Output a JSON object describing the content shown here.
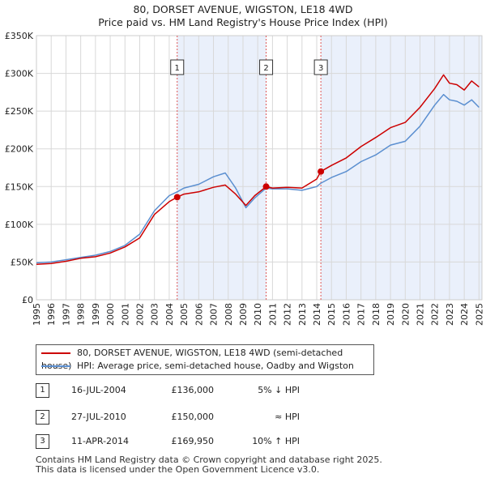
{
  "chart_data": {
    "type": "line",
    "title": "80, DORSET AVENUE, WIGSTON, LE18 4WD",
    "subtitle": "Price paid vs. HM Land Registry's House Price Index (HPI)",
    "xlim": [
      1995,
      2025.2
    ],
    "ylim": [
      0,
      350000
    ],
    "y_ticks": [
      {
        "value": 0,
        "label": "£0"
      },
      {
        "value": 50000,
        "label": "£50K"
      },
      {
        "value": 100000,
        "label": "£100K"
      },
      {
        "value": 150000,
        "label": "£150K"
      },
      {
        "value": 200000,
        "label": "£200K"
      },
      {
        "value": 250000,
        "label": "£250K"
      },
      {
        "value": 300000,
        "label": "£300K"
      },
      {
        "value": 350000,
        "label": "£350K"
      }
    ],
    "x_ticks": [
      "1995",
      "1996",
      "1997",
      "1998",
      "1999",
      "2000",
      "2001",
      "2002",
      "2003",
      "2004",
      "2005",
      "2006",
      "2007",
      "2008",
      "2009",
      "2010",
      "2011",
      "2012",
      "2013",
      "2014",
      "2015",
      "2016",
      "2017",
      "2018",
      "2019",
      "2020",
      "2021",
      "2022",
      "2023",
      "2024",
      "2025"
    ],
    "series": [
      {
        "name": "80, DORSET AVENUE, WIGSTON, LE18 4WD (semi-detached house)",
        "color": "#cc0000",
        "points": [
          [
            1995,
            47000
          ],
          [
            1996,
            48000
          ],
          [
            1997,
            51000
          ],
          [
            1998,
            55000
          ],
          [
            1999,
            57000
          ],
          [
            2000,
            62000
          ],
          [
            2001,
            70000
          ],
          [
            2002,
            82000
          ],
          [
            2003,
            113000
          ],
          [
            2004,
            130000
          ],
          [
            2004.54,
            136000
          ],
          [
            2005,
            140000
          ],
          [
            2006,
            143000
          ],
          [
            2007,
            149000
          ],
          [
            2007.8,
            152000
          ],
          [
            2008.5,
            140000
          ],
          [
            2009.2,
            125000
          ],
          [
            2009.8,
            138000
          ],
          [
            2010.57,
            150000
          ],
          [
            2011,
            148000
          ],
          [
            2012,
            149000
          ],
          [
            2013,
            148000
          ],
          [
            2014,
            160000
          ],
          [
            2014.28,
            169950
          ],
          [
            2015,
            178000
          ],
          [
            2016,
            188000
          ],
          [
            2017,
            203000
          ],
          [
            2018,
            215000
          ],
          [
            2019,
            228000
          ],
          [
            2020,
            235000
          ],
          [
            2021,
            255000
          ],
          [
            2022,
            280000
          ],
          [
            2022.6,
            298000
          ],
          [
            2023,
            287000
          ],
          [
            2023.5,
            285000
          ],
          [
            2024,
            278000
          ],
          [
            2024.5,
            290000
          ],
          [
            2025,
            282000
          ]
        ]
      },
      {
        "name": "HPI: Average price, semi-detached house, Oadby and Wigston",
        "color": "#5b8fd0",
        "points": [
          [
            1995,
            49000
          ],
          [
            1996,
            50000
          ],
          [
            1997,
            53000
          ],
          [
            1998,
            56000
          ],
          [
            1999,
            59000
          ],
          [
            2000,
            64000
          ],
          [
            2001,
            72000
          ],
          [
            2002,
            87000
          ],
          [
            2003,
            118000
          ],
          [
            2004,
            138000
          ],
          [
            2004.54,
            143000
          ],
          [
            2005,
            148000
          ],
          [
            2006,
            153000
          ],
          [
            2007,
            163000
          ],
          [
            2007.8,
            168000
          ],
          [
            2008.5,
            148000
          ],
          [
            2009.2,
            122000
          ],
          [
            2009.8,
            135000
          ],
          [
            2010.57,
            148000
          ],
          [
            2011,
            147000
          ],
          [
            2012,
            147000
          ],
          [
            2013,
            145000
          ],
          [
            2014,
            150000
          ],
          [
            2014.28,
            154500
          ],
          [
            2015,
            162000
          ],
          [
            2016,
            170000
          ],
          [
            2017,
            183000
          ],
          [
            2018,
            192000
          ],
          [
            2019,
            205000
          ],
          [
            2020,
            210000
          ],
          [
            2021,
            230000
          ],
          [
            2022,
            258000
          ],
          [
            2022.6,
            272000
          ],
          [
            2023,
            265000
          ],
          [
            2023.5,
            263000
          ],
          [
            2024,
            258000
          ],
          [
            2024.5,
            265000
          ],
          [
            2025,
            255000
          ]
        ]
      }
    ],
    "transactions": [
      {
        "num": "1",
        "date": "16-JUL-2004",
        "price": "£136,000",
        "relation": "5% ↓ HPI",
        "x": 2004.54,
        "y": 136000
      },
      {
        "num": "2",
        "date": "27-JUL-2010",
        "price": "£150,000",
        "relation": "≈ HPI",
        "x": 2010.57,
        "y": 150000
      },
      {
        "num": "3",
        "date": "11-APR-2014",
        "price": "£169,950",
        "relation": "10% ↑ HPI",
        "x": 2014.28,
        "y": 169950
      }
    ],
    "shaded_spans": [
      [
        2004.54,
        2010.57
      ],
      [
        2014.28,
        2025.2
      ]
    ],
    "legend": {
      "placement": "bottom",
      "entries": [
        {
          "label": "80, DORSET AVENUE, WIGSTON, LE18 4WD (semi-detached house)",
          "color": "#cc0000"
        },
        {
          "label": "HPI: Average price, semi-detached house, Oadby and Wigston",
          "color": "#5b8fd0"
        }
      ]
    }
  },
  "footer": {
    "line1": "Contains HM Land Registry data © Crown copyright and database right 2025.",
    "line2": "This data is licensed under the Open Government Licence v3.0."
  }
}
